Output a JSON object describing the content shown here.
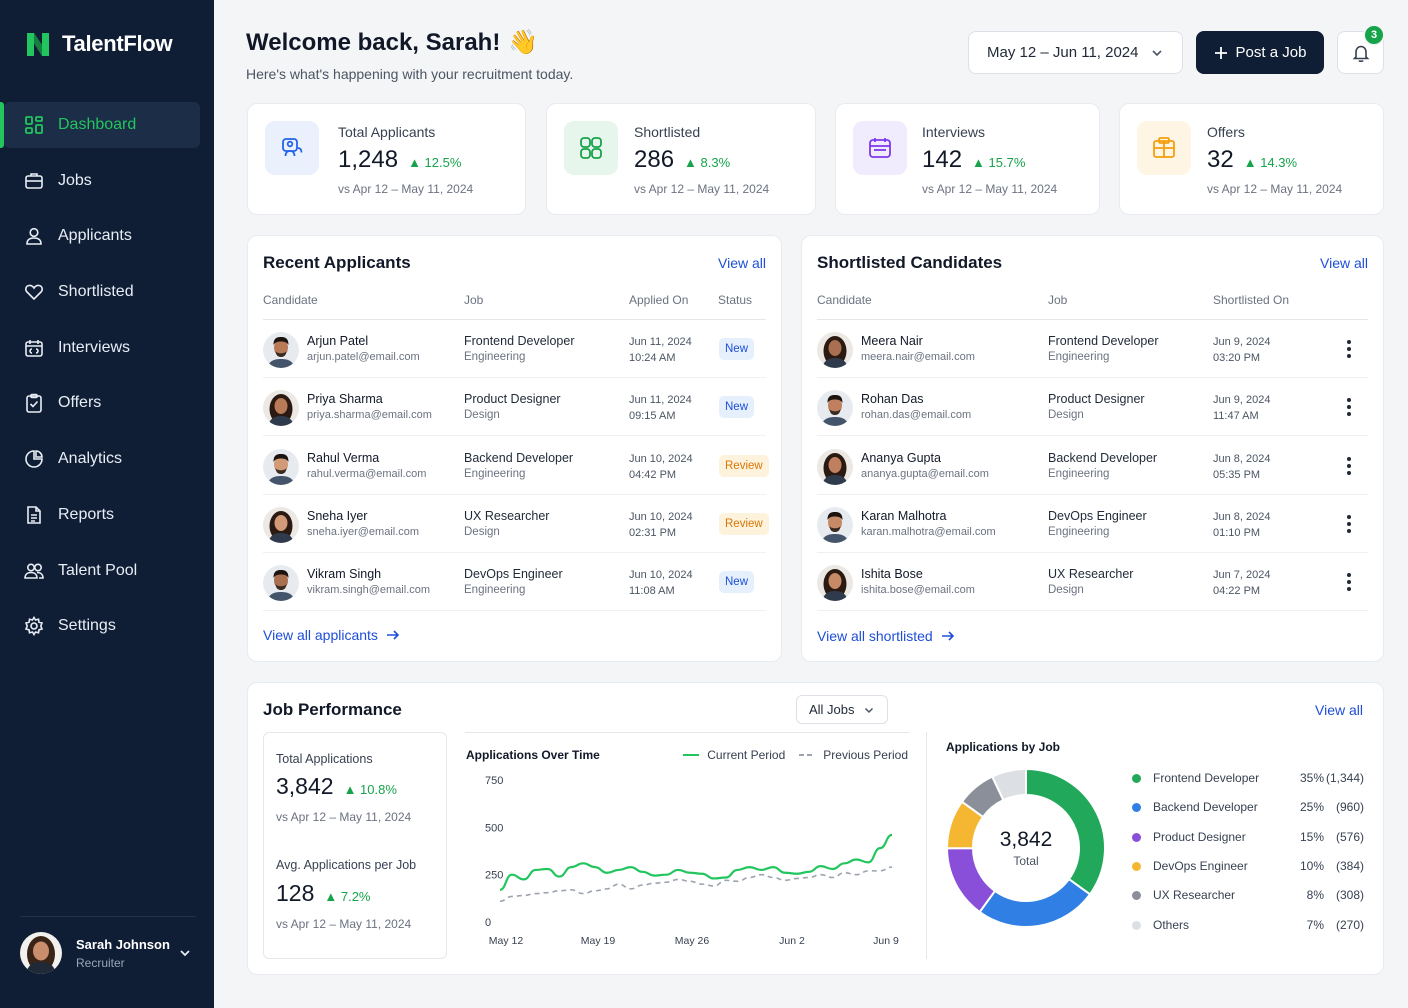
{
  "brand": {
    "name": "TalentFlow",
    "accent": "#22c55e"
  },
  "nav": [
    {
      "label": "Dashboard",
      "icon": "dashboard-icon",
      "active": true
    },
    {
      "label": "Jobs",
      "icon": "briefcase-icon"
    },
    {
      "label": "Applicants",
      "icon": "user-icon"
    },
    {
      "label": "Shortlisted",
      "icon": "heart-icon"
    },
    {
      "label": "Interviews",
      "icon": "calendar-icon"
    },
    {
      "label": "Offers",
      "icon": "clipboard-icon"
    },
    {
      "label": "Analytics",
      "icon": "chart-pie-icon"
    },
    {
      "label": "Reports",
      "icon": "document-icon"
    },
    {
      "label": "Talent Pool",
      "icon": "users-icon"
    },
    {
      "label": "Settings",
      "icon": "gear-icon"
    }
  ],
  "user": {
    "name": "Sarah Johnson",
    "role": "Recruiter"
  },
  "header": {
    "welcome": "Welcome back, Sarah!",
    "wave": "👋",
    "subtitle": "Here's what's happening with your recruitment today.",
    "date_range": "May 12 – Jun 11, 2024",
    "post_job": "Post a Job",
    "notifications": "3"
  },
  "stats": [
    {
      "title": "Total Applicants",
      "value": "1,248",
      "change": "12.5%",
      "compare": "vs Apr 12 – May 11, 2024",
      "icon": "applicants-icon",
      "color": "#2563eb",
      "bg": "#eaf1fd"
    },
    {
      "title": "Shortlisted",
      "value": "286",
      "change": "8.3%",
      "compare": "vs Apr 12 – May 11, 2024",
      "icon": "shortlist-icon",
      "color": "#16a34a",
      "bg": "#e7f6ec"
    },
    {
      "title": "Interviews",
      "value": "142",
      "change": "15.7%",
      "compare": "vs Apr 12 – May 11, 2024",
      "icon": "interview-icon",
      "color": "#7c3aed",
      "bg": "#f0ebfd"
    },
    {
      "title": "Offers",
      "value": "32",
      "change": "14.3%",
      "compare": "vs Apr 12 – May 11, 2024",
      "icon": "offer-icon",
      "color": "#f59e0b",
      "bg": "#fef5e4"
    }
  ],
  "recent": {
    "title": "Recent Applicants",
    "view_all": "View all",
    "columns": [
      "Candidate",
      "Job",
      "Applied On",
      "Status"
    ],
    "rows": [
      {
        "name": "Arjun Patel",
        "email": "arjun.patel@email.com",
        "job": "Frontend Developer",
        "dept": "Engineering",
        "date": "Jun 11, 2024",
        "time": "10:24 AM",
        "status": "New",
        "status_type": "new",
        "avatar": "m1"
      },
      {
        "name": "Priya Sharma",
        "email": "priya.sharma@email.com",
        "job": "Product Designer",
        "dept": "Design",
        "date": "Jun 11, 2024",
        "time": "09:15 AM",
        "status": "New",
        "status_type": "new",
        "avatar": "f1"
      },
      {
        "name": "Rahul Verma",
        "email": "rahul.verma@email.com",
        "job": "Backend Developer",
        "dept": "Engineering",
        "date": "Jun 10, 2024",
        "time": "04:42 PM",
        "status": "Review",
        "status_type": "review",
        "avatar": "m2"
      },
      {
        "name": "Sneha Iyer",
        "email": "sneha.iyer@email.com",
        "job": "UX Researcher",
        "dept": "Design",
        "date": "Jun 10, 2024",
        "time": "02:31 PM",
        "status": "Review",
        "status_type": "review",
        "avatar": "f2"
      },
      {
        "name": "Vikram Singh",
        "email": "vikram.singh@email.com",
        "job": "DevOps Engineer",
        "dept": "Engineering",
        "date": "Jun 10, 2024",
        "time": "11:08 AM",
        "status": "New",
        "status_type": "new",
        "avatar": "m3"
      }
    ],
    "footer": "View all applicants"
  },
  "shortlisted": {
    "title": "Shortlisted Candidates",
    "view_all": "View all",
    "columns": [
      "Candidate",
      "Job",
      "Shortlisted On"
    ],
    "rows": [
      {
        "name": "Meera Nair",
        "email": "meera.nair@email.com",
        "job": "Frontend Developer",
        "dept": "Engineering",
        "date": "Jun 9, 2024",
        "time": "03:20 PM",
        "avatar": "f3"
      },
      {
        "name": "Rohan Das",
        "email": "rohan.das@email.com",
        "job": "Product Designer",
        "dept": "Design",
        "date": "Jun 9, 2024",
        "time": "11:47 AM",
        "avatar": "m4"
      },
      {
        "name": "Ananya Gupta",
        "email": "ananya.gupta@email.com",
        "job": "Backend Developer",
        "dept": "Engineering",
        "date": "Jun 8, 2024",
        "time": "05:35 PM",
        "avatar": "f4"
      },
      {
        "name": "Karan Malhotra",
        "email": "karan.malhotra@email.com",
        "job": "DevOps Engineer",
        "dept": "Engineering",
        "date": "Jun 8, 2024",
        "time": "01:10 PM",
        "avatar": "m5"
      },
      {
        "name": "Ishita Bose",
        "email": "ishita.bose@email.com",
        "job": "UX Researcher",
        "dept": "Design",
        "date": "Jun 7, 2024",
        "time": "04:22 PM",
        "avatar": "f5"
      }
    ],
    "footer": "View all shortlisted"
  },
  "performance": {
    "title": "Job Performance",
    "filter": "All Jobs",
    "view_all": "View all",
    "total_label": "Total Applications",
    "total_value": "3,842",
    "total_change": "10.8%",
    "total_compare": "vs Apr 12 – May 11, 2024",
    "avg_label": "Avg. Applications per Job",
    "avg_value": "128",
    "avg_change": "7.2%",
    "avg_compare": "vs Apr 12 – May 11, 2024"
  },
  "chart_data": [
    {
      "type": "line",
      "title": "Applications Over Time",
      "x_ticks": [
        "May 12",
        "May 19",
        "May 26",
        "Jun 2",
        "Jun 9"
      ],
      "y_ticks": [
        0,
        250,
        500,
        750
      ],
      "ylim": [
        0,
        750
      ],
      "legend_position": "top-right",
      "series": [
        {
          "name": "Current Period",
          "color": "#22c55e",
          "style": "solid",
          "values": [
            170,
            250,
            225,
            275,
            280,
            240,
            290,
            310,
            290,
            260,
            275,
            290,
            265,
            245,
            250,
            275,
            260,
            255,
            230,
            235,
            275,
            290,
            275,
            290,
            260,
            255,
            265,
            295,
            280,
            310,
            330,
            315,
            390,
            460
          ]
        },
        {
          "name": "Previous Period",
          "color": "#9ca3af",
          "style": "dashed",
          "values": [
            110,
            135,
            140,
            150,
            155,
            165,
            170,
            150,
            165,
            175,
            200,
            175,
            195,
            205,
            210,
            225,
            215,
            200,
            190,
            220,
            215,
            235,
            250,
            235,
            220,
            230,
            235,
            250,
            235,
            260,
            250,
            270,
            270,
            290
          ]
        }
      ]
    },
    {
      "type": "pie",
      "title": "Applications by Job",
      "center_value": "3,842",
      "center_label": "Total",
      "slices": [
        {
          "label": "Frontend Developer",
          "percent": 35,
          "count": "(1,344)",
          "value": 1344,
          "color": "#22a85a"
        },
        {
          "label": "Backend Developer",
          "percent": 25,
          "count": "(960)",
          "value": 960,
          "color": "#2f7fe4"
        },
        {
          "label": "Product Designer",
          "percent": 15,
          "count": "(576)",
          "value": 576,
          "color": "#8a4fd8"
        },
        {
          "label": "DevOps Engineer",
          "percent": 10,
          "count": "(384)",
          "value": 384,
          "color": "#f5b731"
        },
        {
          "label": "UX Researcher",
          "percent": 8,
          "count": "(308)",
          "value": 308,
          "color": "#8a8f99"
        },
        {
          "label": "Others",
          "percent": 7,
          "count": "(270)",
          "value": 270,
          "color": "#dcdfe4"
        }
      ]
    }
  ]
}
